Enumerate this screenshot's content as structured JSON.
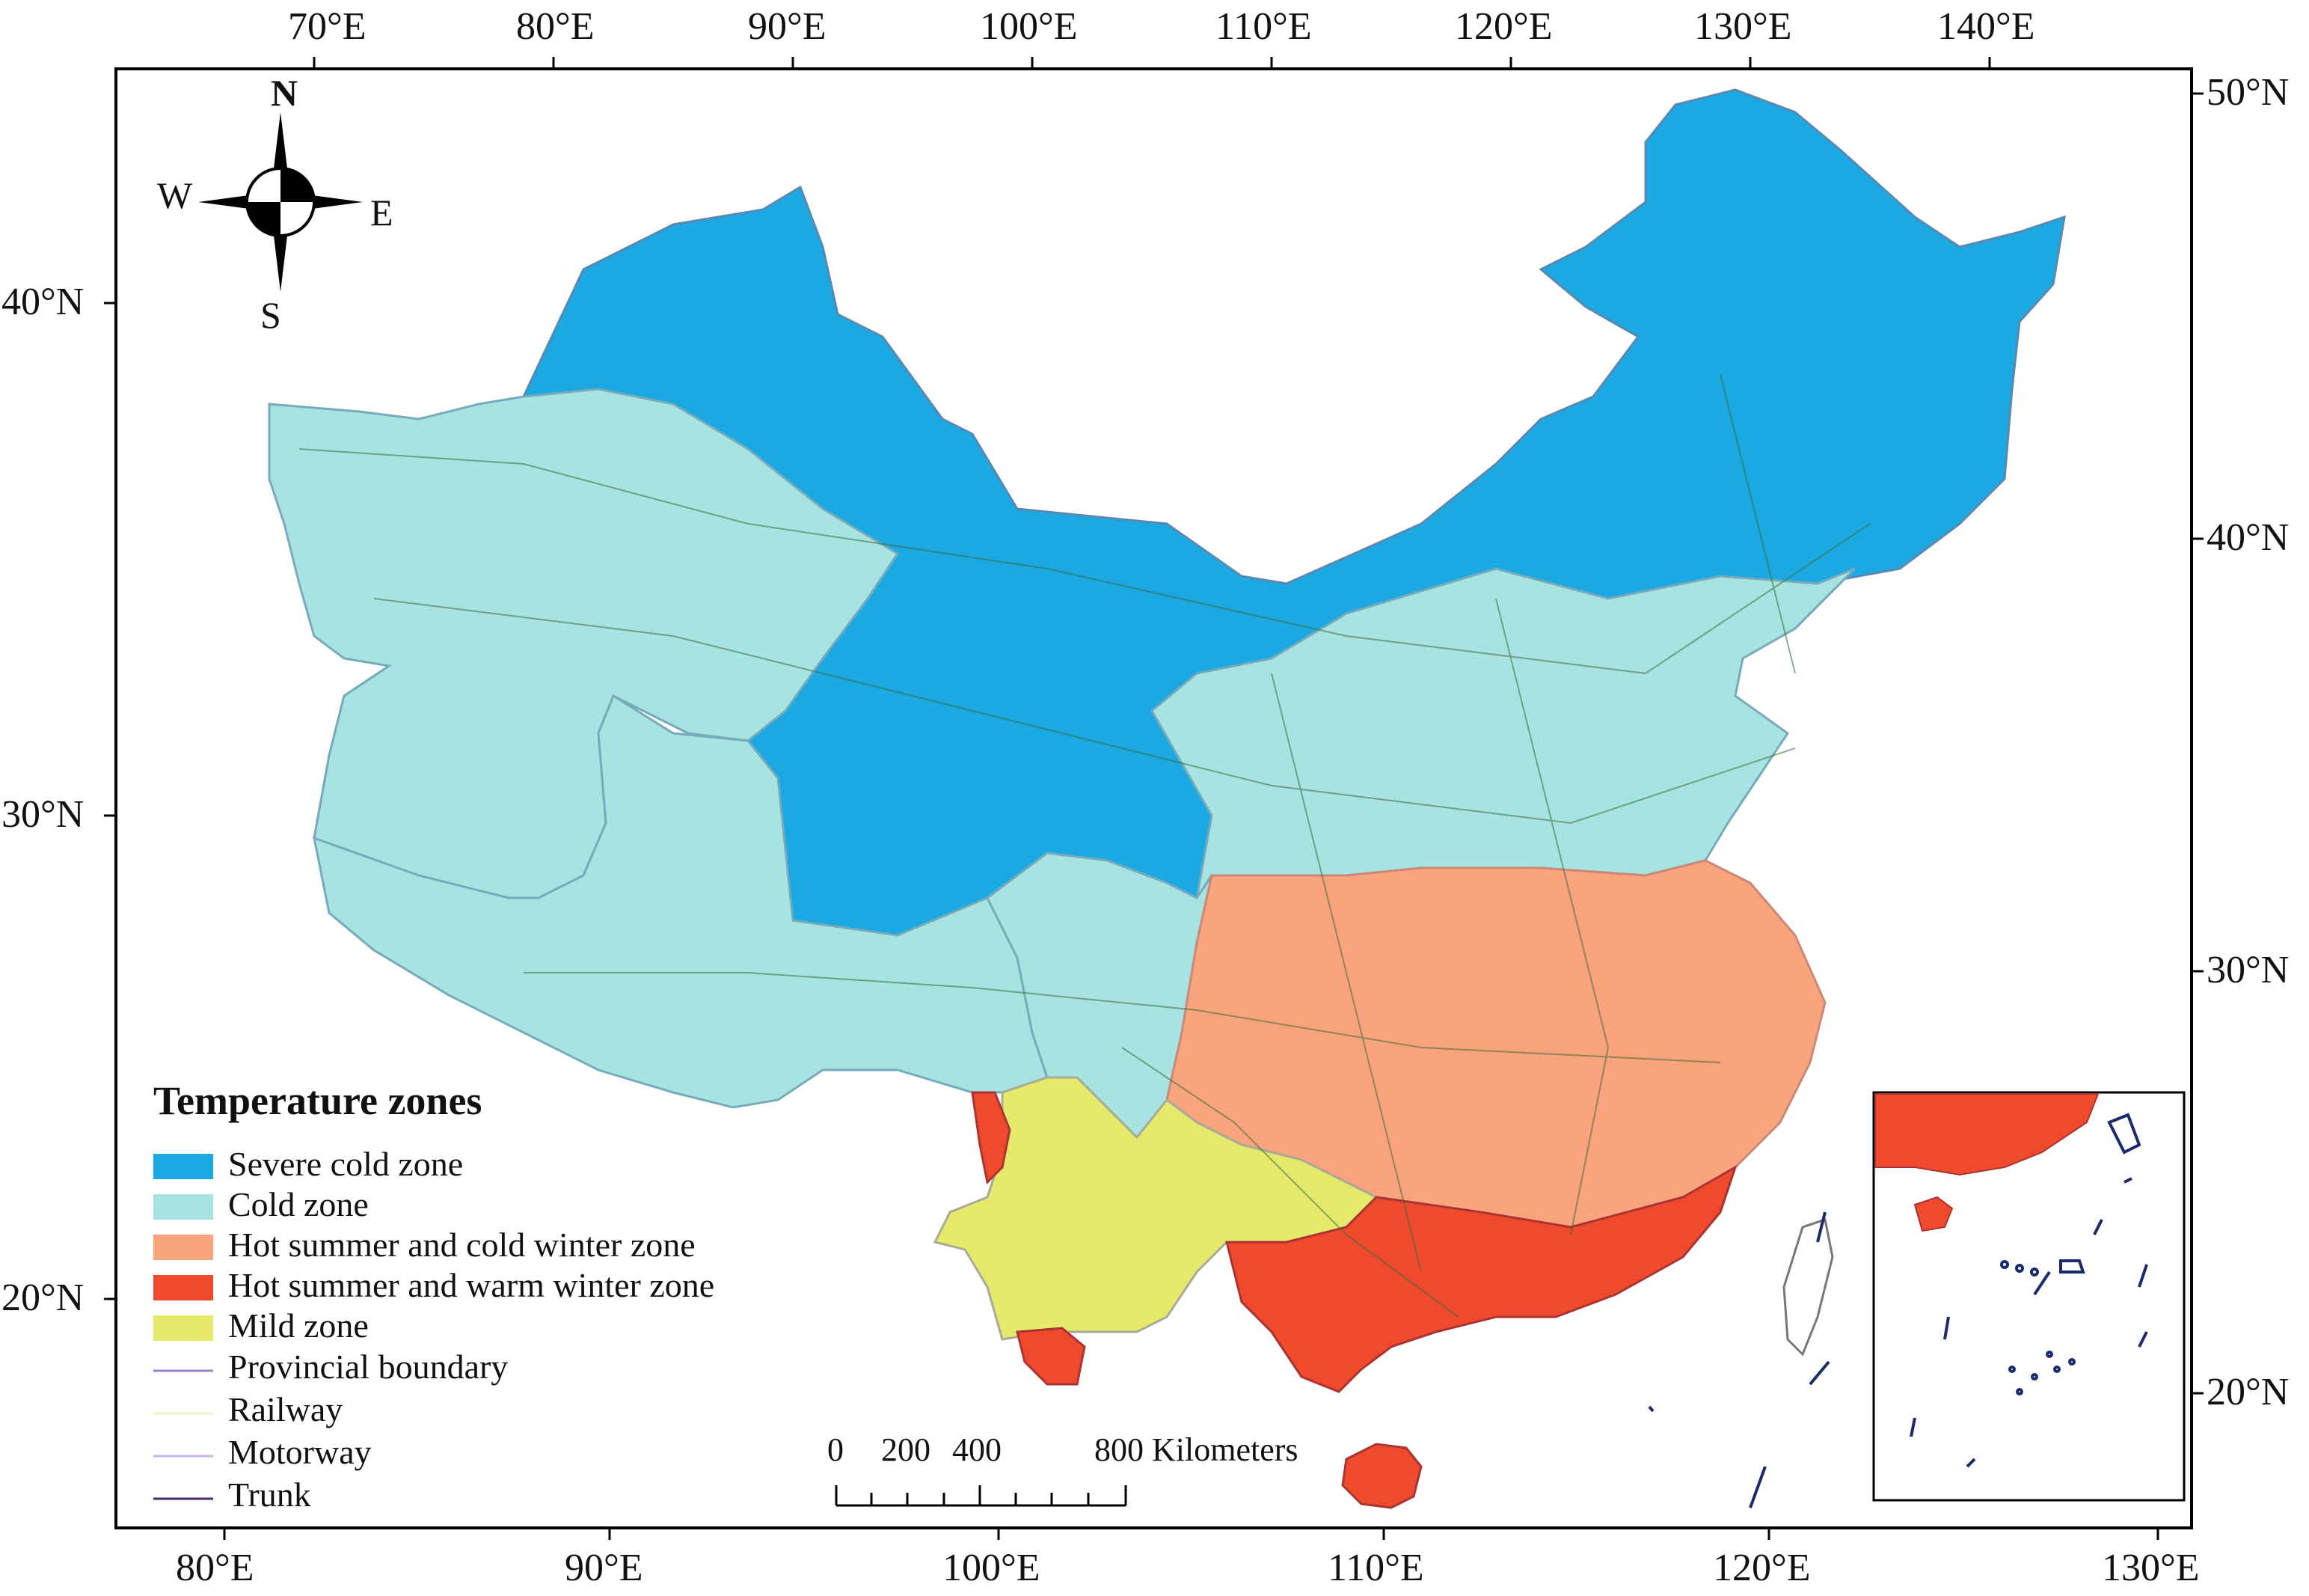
{
  "legend": {
    "title": "Temperature zones",
    "zones": [
      {
        "label": "Severe cold zone",
        "color": "#1aa9e3"
      },
      {
        "label": "Cold zone",
        "color": "#a6e3e1"
      },
      {
        "label": "Hot summer and cold winter zone",
        "color": "#f9a47c"
      },
      {
        "label": "Hot summer and warm winter zone",
        "color": "#f04a2c"
      },
      {
        "label": "Mild zone",
        "color": "#e5ea6a"
      }
    ],
    "lines": [
      {
        "label": "Provincial boundary",
        "color": "#9a82c8"
      },
      {
        "label": "Railway",
        "color": "#f0f0c0"
      },
      {
        "label": "Motorway",
        "color": "#c8b4e6"
      },
      {
        "label": "Trunk",
        "color": "#4a2a6a"
      }
    ]
  },
  "axes": {
    "top": [
      "70°E",
      "80°E",
      "90°E",
      "100°E",
      "110°E",
      "120°E",
      "130°E",
      "140°E"
    ],
    "bottom": [
      "80°E",
      "90°E",
      "100°E",
      "110°E",
      "120°E",
      "130°E"
    ],
    "left": [
      "40°N",
      "30°N",
      "20°N"
    ],
    "right": [
      "50°N",
      "40°N",
      "30°N",
      "20°N"
    ]
  },
  "compass": {
    "n": "N",
    "s": "S",
    "e": "E",
    "w": "W"
  },
  "scale": {
    "labels": [
      "0",
      "200",
      "400",
      "800 Kilometers"
    ]
  }
}
